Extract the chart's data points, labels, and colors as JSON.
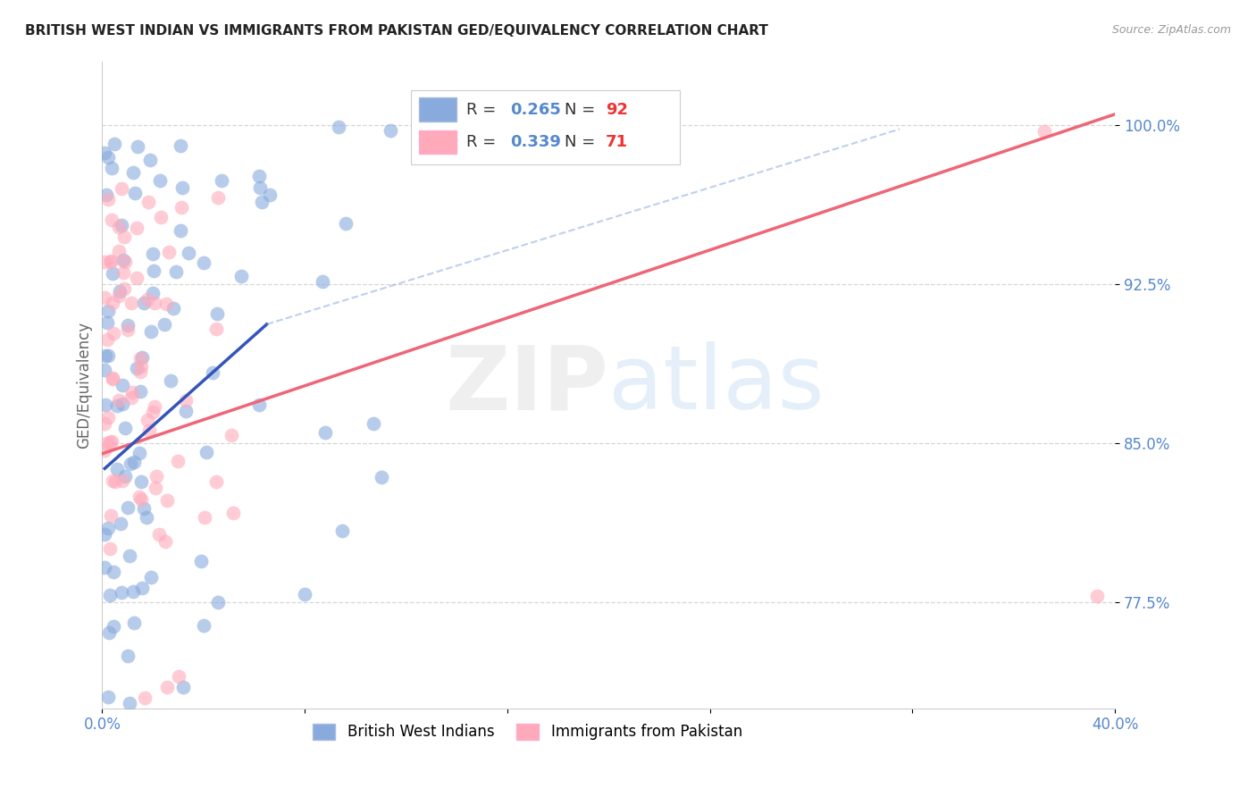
{
  "title": "BRITISH WEST INDIAN VS IMMIGRANTS FROM PAKISTAN GED/EQUIVALENCY CORRELATION CHART",
  "source": "Source: ZipAtlas.com",
  "ylabel": "GED/Equivalency",
  "xmin": 0.0,
  "xmax": 0.4,
  "ymin": 0.725,
  "ymax": 1.03,
  "yticks": [
    0.775,
    0.85,
    0.925,
    1.0
  ],
  "ytick_labels": [
    "77.5%",
    "85.0%",
    "92.5%",
    "100.0%"
  ],
  "xtick_labels": [
    "0.0%",
    "",
    "",
    "",
    "",
    "40.0%"
  ],
  "blue_color": "#88AADD",
  "pink_color": "#FFAABB",
  "blue_line_color": "#3355BB",
  "pink_line_color": "#EE6677",
  "blue_dash_color": "#88AADD",
  "watermark_zip_color": "#CCCCCC",
  "watermark_atlas_color": "#AACCEE",
  "legend_box_color": "#EEEEEE",
  "tick_color": "#5588CC",
  "grid_color": "#CCCCCC"
}
